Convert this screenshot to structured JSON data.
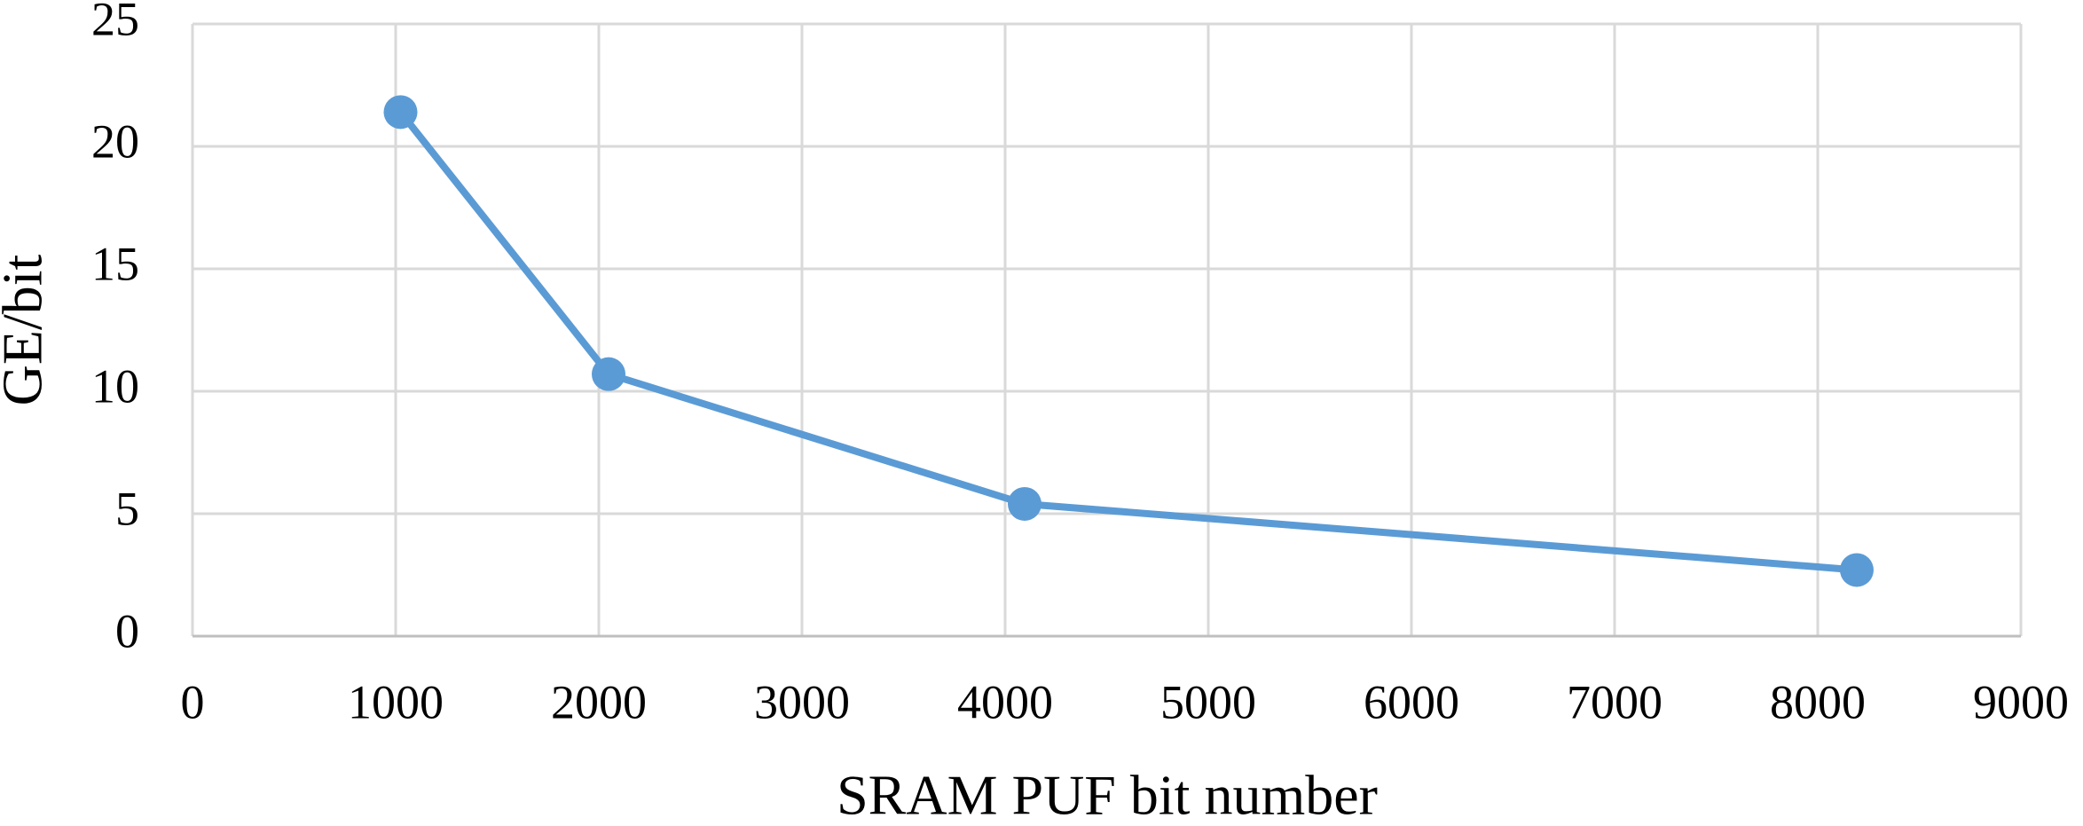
{
  "chart_data": {
    "type": "line",
    "x_label": "SRAM PUF bit number",
    "y_label": "GE/bit",
    "x": [
      1024,
      2048,
      4096,
      8192
    ],
    "series": [
      {
        "name": "GE/bit",
        "color": "#5b9bd5",
        "values": [
          21.4,
          10.7,
          5.4,
          2.7
        ]
      }
    ],
    "xlim": [
      0,
      9000
    ],
    "xticks": [
      0,
      1000,
      2000,
      3000,
      4000,
      5000,
      6000,
      7000,
      8000,
      9000
    ],
    "ylim": [
      0,
      25
    ],
    "yticks": [
      0,
      5,
      10,
      15,
      20,
      25
    ],
    "grid": true,
    "markers": true
  }
}
